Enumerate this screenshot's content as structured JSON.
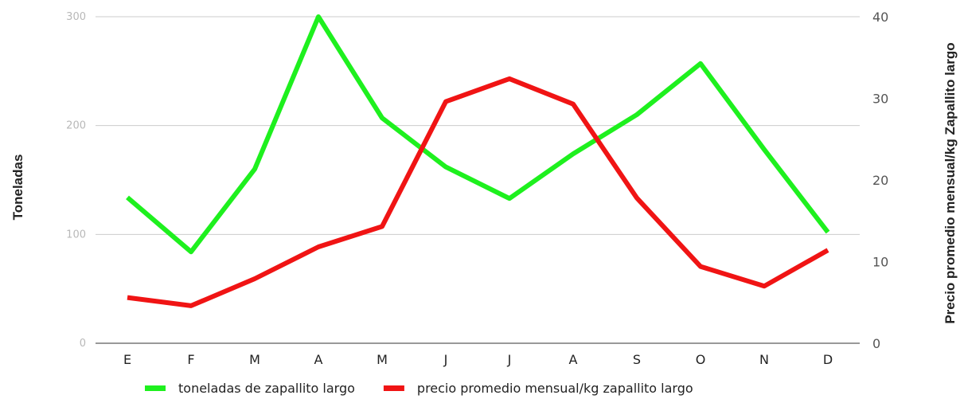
{
  "chart_data": {
    "type": "line",
    "categories": [
      "E",
      "F",
      "M",
      "A",
      "M",
      "J",
      "J",
      "A",
      "S",
      "O",
      "N",
      "D"
    ],
    "series": [
      {
        "name": "toneladas de zapallito largo",
        "axis": "left",
        "color": "#1ef01e",
        "values": [
          134,
          84,
          160,
          300,
          207,
          162,
          133,
          174,
          210,
          257,
          178,
          102
        ]
      },
      {
        "name": "precio promedio mensual/kg zapallito largo",
        "axis": "right",
        "color": "#f01414",
        "values": [
          5.6,
          4.6,
          7.9,
          11.8,
          14.3,
          29.6,
          32.4,
          29.3,
          17.8,
          9.4,
          7.0,
          11.4
        ]
      }
    ],
    "ylabel": "Toneladas",
    "y2label": "Precio promedio mensual/kg Zapallito largo",
    "ylim": [
      0,
      300
    ],
    "y2lim": [
      0,
      40
    ],
    "yticks": [
      "0",
      "100",
      "200",
      "300"
    ],
    "y2ticks": [
      "0",
      "10",
      "20",
      "30",
      "40"
    ],
    "grid": true,
    "legend_position": "bottom"
  }
}
